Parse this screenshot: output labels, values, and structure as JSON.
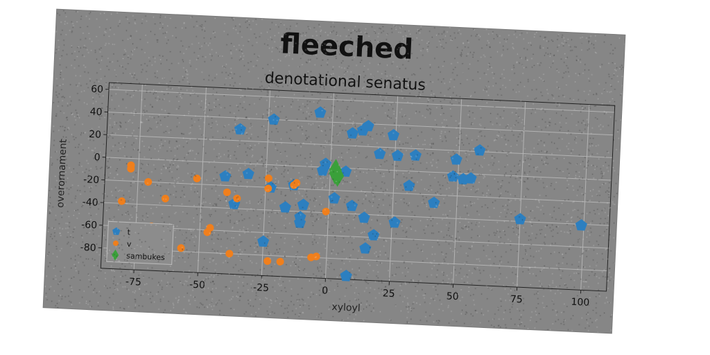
{
  "figure": {
    "background_color": "#868686"
  },
  "chart_data": {
    "type": "scatter",
    "title": "fleeched",
    "subtitle": "denotational senatus",
    "xlabel": "xyloyl",
    "ylabel": "overornament",
    "xlim": [
      -88,
      110
    ],
    "ylim": [
      -98,
      66
    ],
    "xticks": [
      -75,
      -50,
      -25,
      0,
      25,
      50,
      75,
      100
    ],
    "yticks": [
      -80,
      -60,
      -40,
      -20,
      0,
      20,
      40,
      60
    ],
    "grid": true,
    "legend_position": "lower-left",
    "series": [
      {
        "name": "t",
        "marker": "pentagon",
        "color": "#2c7fc0",
        "points": [
          [
            -5,
            48
          ],
          [
            -36,
            30
          ],
          [
            -23,
            40
          ],
          [
            8,
            31
          ],
          [
            12,
            34
          ],
          [
            14,
            38
          ],
          [
            24,
            31
          ],
          [
            19,
            14
          ],
          [
            26,
            13
          ],
          [
            33,
            14
          ],
          [
            49,
            12
          ],
          [
            58,
            21
          ],
          [
            -2,
            3
          ],
          [
            -3,
            -3
          ],
          [
            6,
            -3
          ],
          [
            48,
            -3
          ],
          [
            52,
            -5
          ],
          [
            55,
            -4
          ],
          [
            -41,
            -12
          ],
          [
            -32,
            -9
          ],
          [
            -23,
            -20
          ],
          [
            -14,
            -17
          ],
          [
            31,
            -13
          ],
          [
            2,
            -27
          ],
          [
            41,
            -27
          ],
          [
            -17,
            -37
          ],
          [
            -10,
            -34
          ],
          [
            -37,
            -36
          ],
          [
            9,
            -33
          ],
          [
            14,
            -43
          ],
          [
            26,
            -46
          ],
          [
            -11,
            -45
          ],
          [
            -11,
            -50
          ],
          [
            18,
            -58
          ],
          [
            15,
            -70
          ],
          [
            -25,
            -68
          ],
          [
            8,
            -95
          ],
          [
            75,
            -38
          ],
          [
            99,
            -41
          ]
        ]
      },
      {
        "name": "v",
        "marker": "circle",
        "color": "#f07f1c",
        "points": [
          [
            -78,
            -6
          ],
          [
            -78,
            -9
          ],
          [
            -71,
            -20
          ],
          [
            -52,
            -15
          ],
          [
            -64,
            -34
          ],
          [
            -81,
            -38
          ],
          [
            -40,
            -26
          ],
          [
            -36,
            -31
          ],
          [
            -24,
            -12
          ],
          [
            -24,
            -21
          ],
          [
            -13,
            -15
          ],
          [
            -14,
            -17
          ],
          [
            -1,
            -39
          ],
          [
            -46,
            -58
          ],
          [
            -47,
            -62
          ],
          [
            -69,
            -59
          ],
          [
            -57,
            -77
          ],
          [
            -38,
            -80
          ],
          [
            -23,
            -85
          ],
          [
            -18,
            -85
          ],
          [
            -6,
            -80
          ],
          [
            -4,
            -79
          ]
        ]
      },
      {
        "name": "sambukes",
        "marker": "diamond",
        "color": "#3aa03a",
        "points": [
          [
            2,
            -2
          ],
          [
            2,
            -5
          ],
          [
            3,
            -7
          ]
        ]
      }
    ]
  }
}
